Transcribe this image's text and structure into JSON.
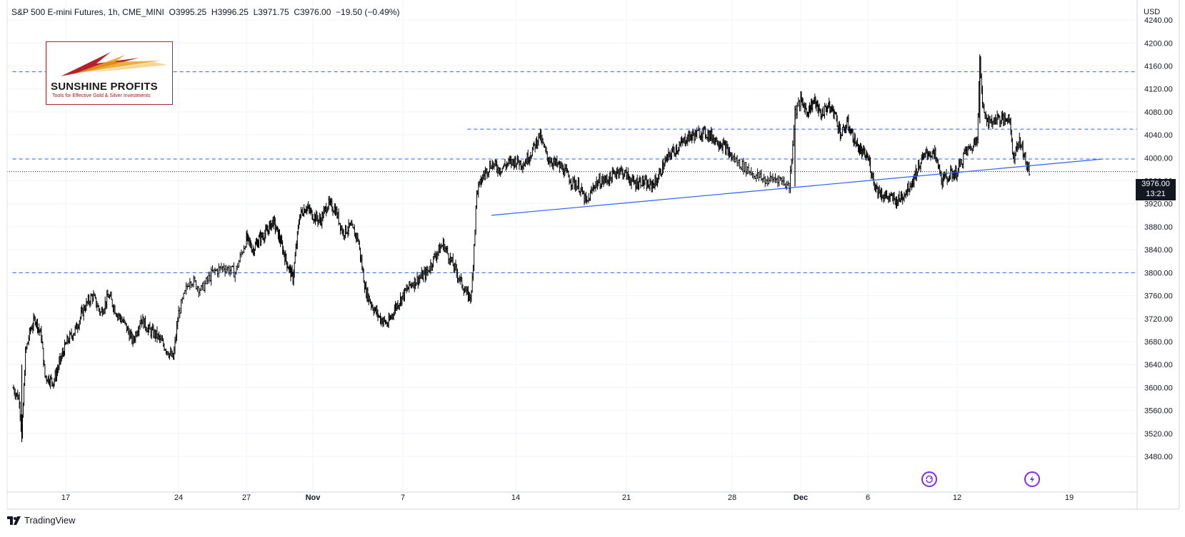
{
  "header": {
    "symbol_line": "S&P 500 E-mini Futures, 1h, CME_MINI  O3995.25  H3996.25  L3971.75  C3976.00  −19.50 (−0.49%)"
  },
  "footer": {
    "brand": "TradingView"
  },
  "logo": {
    "name": "SUNSHINE PROFITS",
    "tagline": "Tools for Effective Gold & Silver Investments"
  },
  "price_badge": {
    "price": "3976.00",
    "countdown": "13:21"
  },
  "colors": {
    "candle": "#000000",
    "level_line": "#2962ff",
    "trendline": "#2962ff",
    "badge_bg": "#131722",
    "event_icon": "#7b2cf5",
    "logo_border": "#b5202a"
  },
  "icons": [
    "tradingview-logo-icon",
    "dividends-icon",
    "earnings-icon"
  ],
  "chart_data": {
    "type": "candlestick",
    "timeframe": "1h",
    "currency": "USD",
    "y_axis": {
      "unit": "USD",
      "ylim": [
        3440,
        4280
      ],
      "ticks": [
        "4240.00",
        "4200.00",
        "4160.00",
        "4120.00",
        "4080.00",
        "4040.00",
        "4000.00",
        "3960.00",
        "3920.00",
        "3880.00",
        "3840.00",
        "3800.00",
        "3760.00",
        "3720.00",
        "3680.00",
        "3640.00",
        "3600.00",
        "3560.00",
        "3520.00",
        "3480.00"
      ]
    },
    "x_axis": {
      "ticks": [
        "17",
        "24",
        "27",
        "Nov",
        "7",
        "14",
        "21",
        "28",
        "Dec",
        "6",
        "12",
        "19"
      ],
      "bold_ticks": [
        "Nov",
        "Dec"
      ]
    },
    "price_path": [
      [
        "Oct 13 09:00",
        3600
      ],
      [
        "Oct 13 20:00",
        3580
      ],
      [
        "Oct 14 00:00",
        3510
      ],
      [
        "Oct 14 06:00",
        3660
      ],
      [
        "Oct 14 14:00",
        3700
      ],
      [
        "Oct 14 22:00",
        3720
      ],
      [
        "Oct 15 08:00",
        3690
      ],
      [
        "Oct 15 14:00",
        3620
      ],
      [
        "Oct 16 04:00",
        3610
      ],
      [
        "Oct 16 16:00",
        3650
      ],
      [
        "Oct 17 02:00",
        3680
      ],
      [
        "Oct 17 14:00",
        3700
      ],
      [
        "Oct 18 04:00",
        3740
      ],
      [
        "Oct 18 16:00",
        3760
      ],
      [
        "Oct 19 04:00",
        3730
      ],
      [
        "Oct 19 16:00",
        3760
      ],
      [
        "Oct 20 04:00",
        3730
      ],
      [
        "Oct 20 16:00",
        3710
      ],
      [
        "Oct 21 04:00",
        3680
      ],
      [
        "Oct 21 16:00",
        3720
      ],
      [
        "Oct 22 04:00",
        3700
      ],
      [
        "Oct 22 16:00",
        3690
      ],
      [
        "Oct 23 04:00",
        3670
      ],
      [
        "Oct 23 16:00",
        3650
      ],
      [
        "Oct 24 00:00",
        3730
      ],
      [
        "Oct 24 12:00",
        3790
      ],
      [
        "Oct 25 00:00",
        3770
      ],
      [
        "Oct 25 12:00",
        3800
      ],
      [
        "Oct 26 00:00",
        3810
      ],
      [
        "Oct 26 12:00",
        3800
      ],
      [
        "Oct 27 00:00",
        3860
      ],
      [
        "Oct 27 12:00",
        3840
      ],
      [
        "Oct 28 00:00",
        3860
      ],
      [
        "Oct 28 12:00",
        3870
      ],
      [
        "Oct 29 00:00",
        3890
      ],
      [
        "Oct 29 12:00",
        3860
      ],
      [
        "Oct 30 00:00",
        3820
      ],
      [
        "Oct 30 12:00",
        3790
      ],
      [
        "Oct 31 00:00",
        3900
      ],
      [
        "Oct 31 12:00",
        3915
      ],
      [
        "Nov 1 00:00",
        3900
      ],
      [
        "Nov 1 12:00",
        3890
      ],
      [
        "Nov 2 00:00",
        3920
      ],
      [
        "Nov 2 12:00",
        3910
      ],
      [
        "Nov 3 00:00",
        3870
      ],
      [
        "Nov 3 12:00",
        3880
      ],
      [
        "Nov 4 00:00",
        3860
      ],
      [
        "Nov 4 12:00",
        3770
      ],
      [
        "Nov 5 00:00",
        3740
      ],
      [
        "Nov 5 12:00",
        3720
      ],
      [
        "Nov 6 00:00",
        3710
      ],
      [
        "Nov 6 12:00",
        3740
      ],
      [
        "Nov 7 00:00",
        3760
      ],
      [
        "Nov 7 12:00",
        3780
      ],
      [
        "Nov 8 00:00",
        3790
      ],
      [
        "Nov 8 12:00",
        3800
      ],
      [
        "Nov 9 00:00",
        3830
      ],
      [
        "Nov 9 12:00",
        3850
      ],
      [
        "Nov 10 00:00",
        3820
      ],
      [
        "Nov 10 12:00",
        3790
      ],
      [
        "Nov 11 00:00",
        3760
      ],
      [
        "Nov 11 06:00",
        3760
      ],
      [
        "Nov 11 10:00",
        3850
      ],
      [
        "Nov 11 14:00",
        3940
      ],
      [
        "Nov 12 00:00",
        3970
      ],
      [
        "Nov 12 12:00",
        3990
      ],
      [
        "Nov 13 00:00",
        3980
      ],
      [
        "Nov 13 12:00",
        3990
      ],
      [
        "Nov 14 00:00",
        3995
      ],
      [
        "Nov 14 12:00",
        3990
      ],
      [
        "Nov 15 00:00",
        4010
      ],
      [
        "Nov 15 12:00",
        4040
      ],
      [
        "Nov 16 00:00",
        4000
      ],
      [
        "Nov 16 12:00",
        3990
      ],
      [
        "Nov 17 00:00",
        3980
      ],
      [
        "Nov 17 12:00",
        3960
      ],
      [
        "Nov 18 00:00",
        3950
      ],
      [
        "Nov 18 12:00",
        3920
      ],
      [
        "Nov 19 00:00",
        3955
      ],
      [
        "Nov 19 12:00",
        3960
      ],
      [
        "Nov 20 00:00",
        3965
      ],
      [
        "Nov 20 12:00",
        3980
      ],
      [
        "Nov 21 00:00",
        3970
      ],
      [
        "Nov 21 12:00",
        3955
      ],
      [
        "Nov 22 00:00",
        3960
      ],
      [
        "Nov 22 12:00",
        3950
      ],
      [
        "Nov 23 00:00",
        3960
      ],
      [
        "Nov 23 12:00",
        3990
      ],
      [
        "Nov 24 00:00",
        4010
      ],
      [
        "Nov 24 12:00",
        4020
      ],
      [
        "Nov 25 00:00",
        4035
      ],
      [
        "Nov 25 12:00",
        4040
      ],
      [
        "Nov 26 00:00",
        4045
      ],
      [
        "Nov 26 12:00",
        4040
      ],
      [
        "Nov 27 00:00",
        4030
      ],
      [
        "Nov 27 12:00",
        4020
      ],
      [
        "Nov 28 00:00",
        4000
      ],
      [
        "Nov 28 12:00",
        3985
      ],
      [
        "Nov 29 00:00",
        3970
      ],
      [
        "Nov 29 12:00",
        3960
      ],
      [
        "Nov 30 00:00",
        3965
      ],
      [
        "Nov 30 12:00",
        3950
      ],
      [
        "Nov 30 18:00",
        4080
      ],
      [
        "Dec 1 00:00",
        4100
      ],
      [
        "Dec 1 12:00",
        4080
      ],
      [
        "Dec 2 00:00",
        4100
      ],
      [
        "Dec 2 12:00",
        4075
      ],
      [
        "Dec 3 00:00",
        4090
      ],
      [
        "Dec 3 12:00",
        4080
      ],
      [
        "Dec 4 00:00",
        4040
      ],
      [
        "Dec 4 12:00",
        4060
      ],
      [
        "Dec 5 00:00",
        4030
      ],
      [
        "Dec 5 12:00",
        4010
      ],
      [
        "Dec 6 00:00",
        4000
      ],
      [
        "Dec 6 12:00",
        3950
      ],
      [
        "Dec 7 00:00",
        3935
      ],
      [
        "Dec 7 12:00",
        3930
      ],
      [
        "Dec 8 00:00",
        3925
      ],
      [
        "Dec 8 12:00",
        3940
      ],
      [
        "Dec 9 00:00",
        3960
      ],
      [
        "Dec 9 12:00",
        3990
      ],
      [
        "Dec 10 00:00",
        4010
      ],
      [
        "Dec 10 12:00",
        4005
      ],
      [
        "Dec 11 00:00",
        3960
      ],
      [
        "Dec 11 12:00",
        3970
      ],
      [
        "Dec 12 00:00",
        3975
      ],
      [
        "Dec 12 12:00",
        4010
      ],
      [
        "Dec 13 00:00",
        4020
      ],
      [
        "Dec 13 06:00",
        4040
      ],
      [
        "Dec 13 10:00",
        4170
      ],
      [
        "Dec 13 14:00",
        4090
      ],
      [
        "Dec 14 00:00",
        4060
      ],
      [
        "Dec 14 12:00",
        4070
      ],
      [
        "Dec 15 00:00",
        4065
      ],
      [
        "Dec 15 06:00",
        4075
      ],
      [
        "Dec 15 12:00",
        4000
      ],
      [
        "Dec 15 20:00",
        4030
      ],
      [
        "Dec 16 04:00",
        4010
      ],
      [
        "Dec 16 08:00",
        3985
      ],
      [
        "Dec 16 12:00",
        3976
      ]
    ],
    "horizontal_levels": [
      {
        "price": 4150,
        "from": "Oct 13 09:00",
        "to": "Dec 21 00:00",
        "style": "dashed"
      },
      {
        "price": 4050,
        "from": "Nov 11 00:00",
        "to": "Dec 21 00:00",
        "style": "dashed"
      },
      {
        "price": 3998,
        "from": "Oct 13 09:00",
        "to": "Dec 21 00:00",
        "style": "dashed"
      },
      {
        "price": 3800,
        "from": "Oct 13 09:00",
        "to": "Dec 21 00:00",
        "style": "dashed"
      },
      {
        "price": 3976,
        "from": "Oct 13 09:00",
        "to": "Dec 21 00:00",
        "style": "dotted-current-price"
      }
    ],
    "trendlines": [
      {
        "from": [
          "Nov 12 12:00",
          3900
        ],
        "to": [
          "Dec 20 12:00",
          3998
        ]
      }
    ],
    "events": [
      {
        "type": "dividends",
        "date": "Dec 9"
      },
      {
        "type": "earnings",
        "date": "Dec 15"
      }
    ],
    "last": {
      "price": 3976.0,
      "countdown": "13:21"
    },
    "grid": true,
    "legend_position": "top-left"
  }
}
